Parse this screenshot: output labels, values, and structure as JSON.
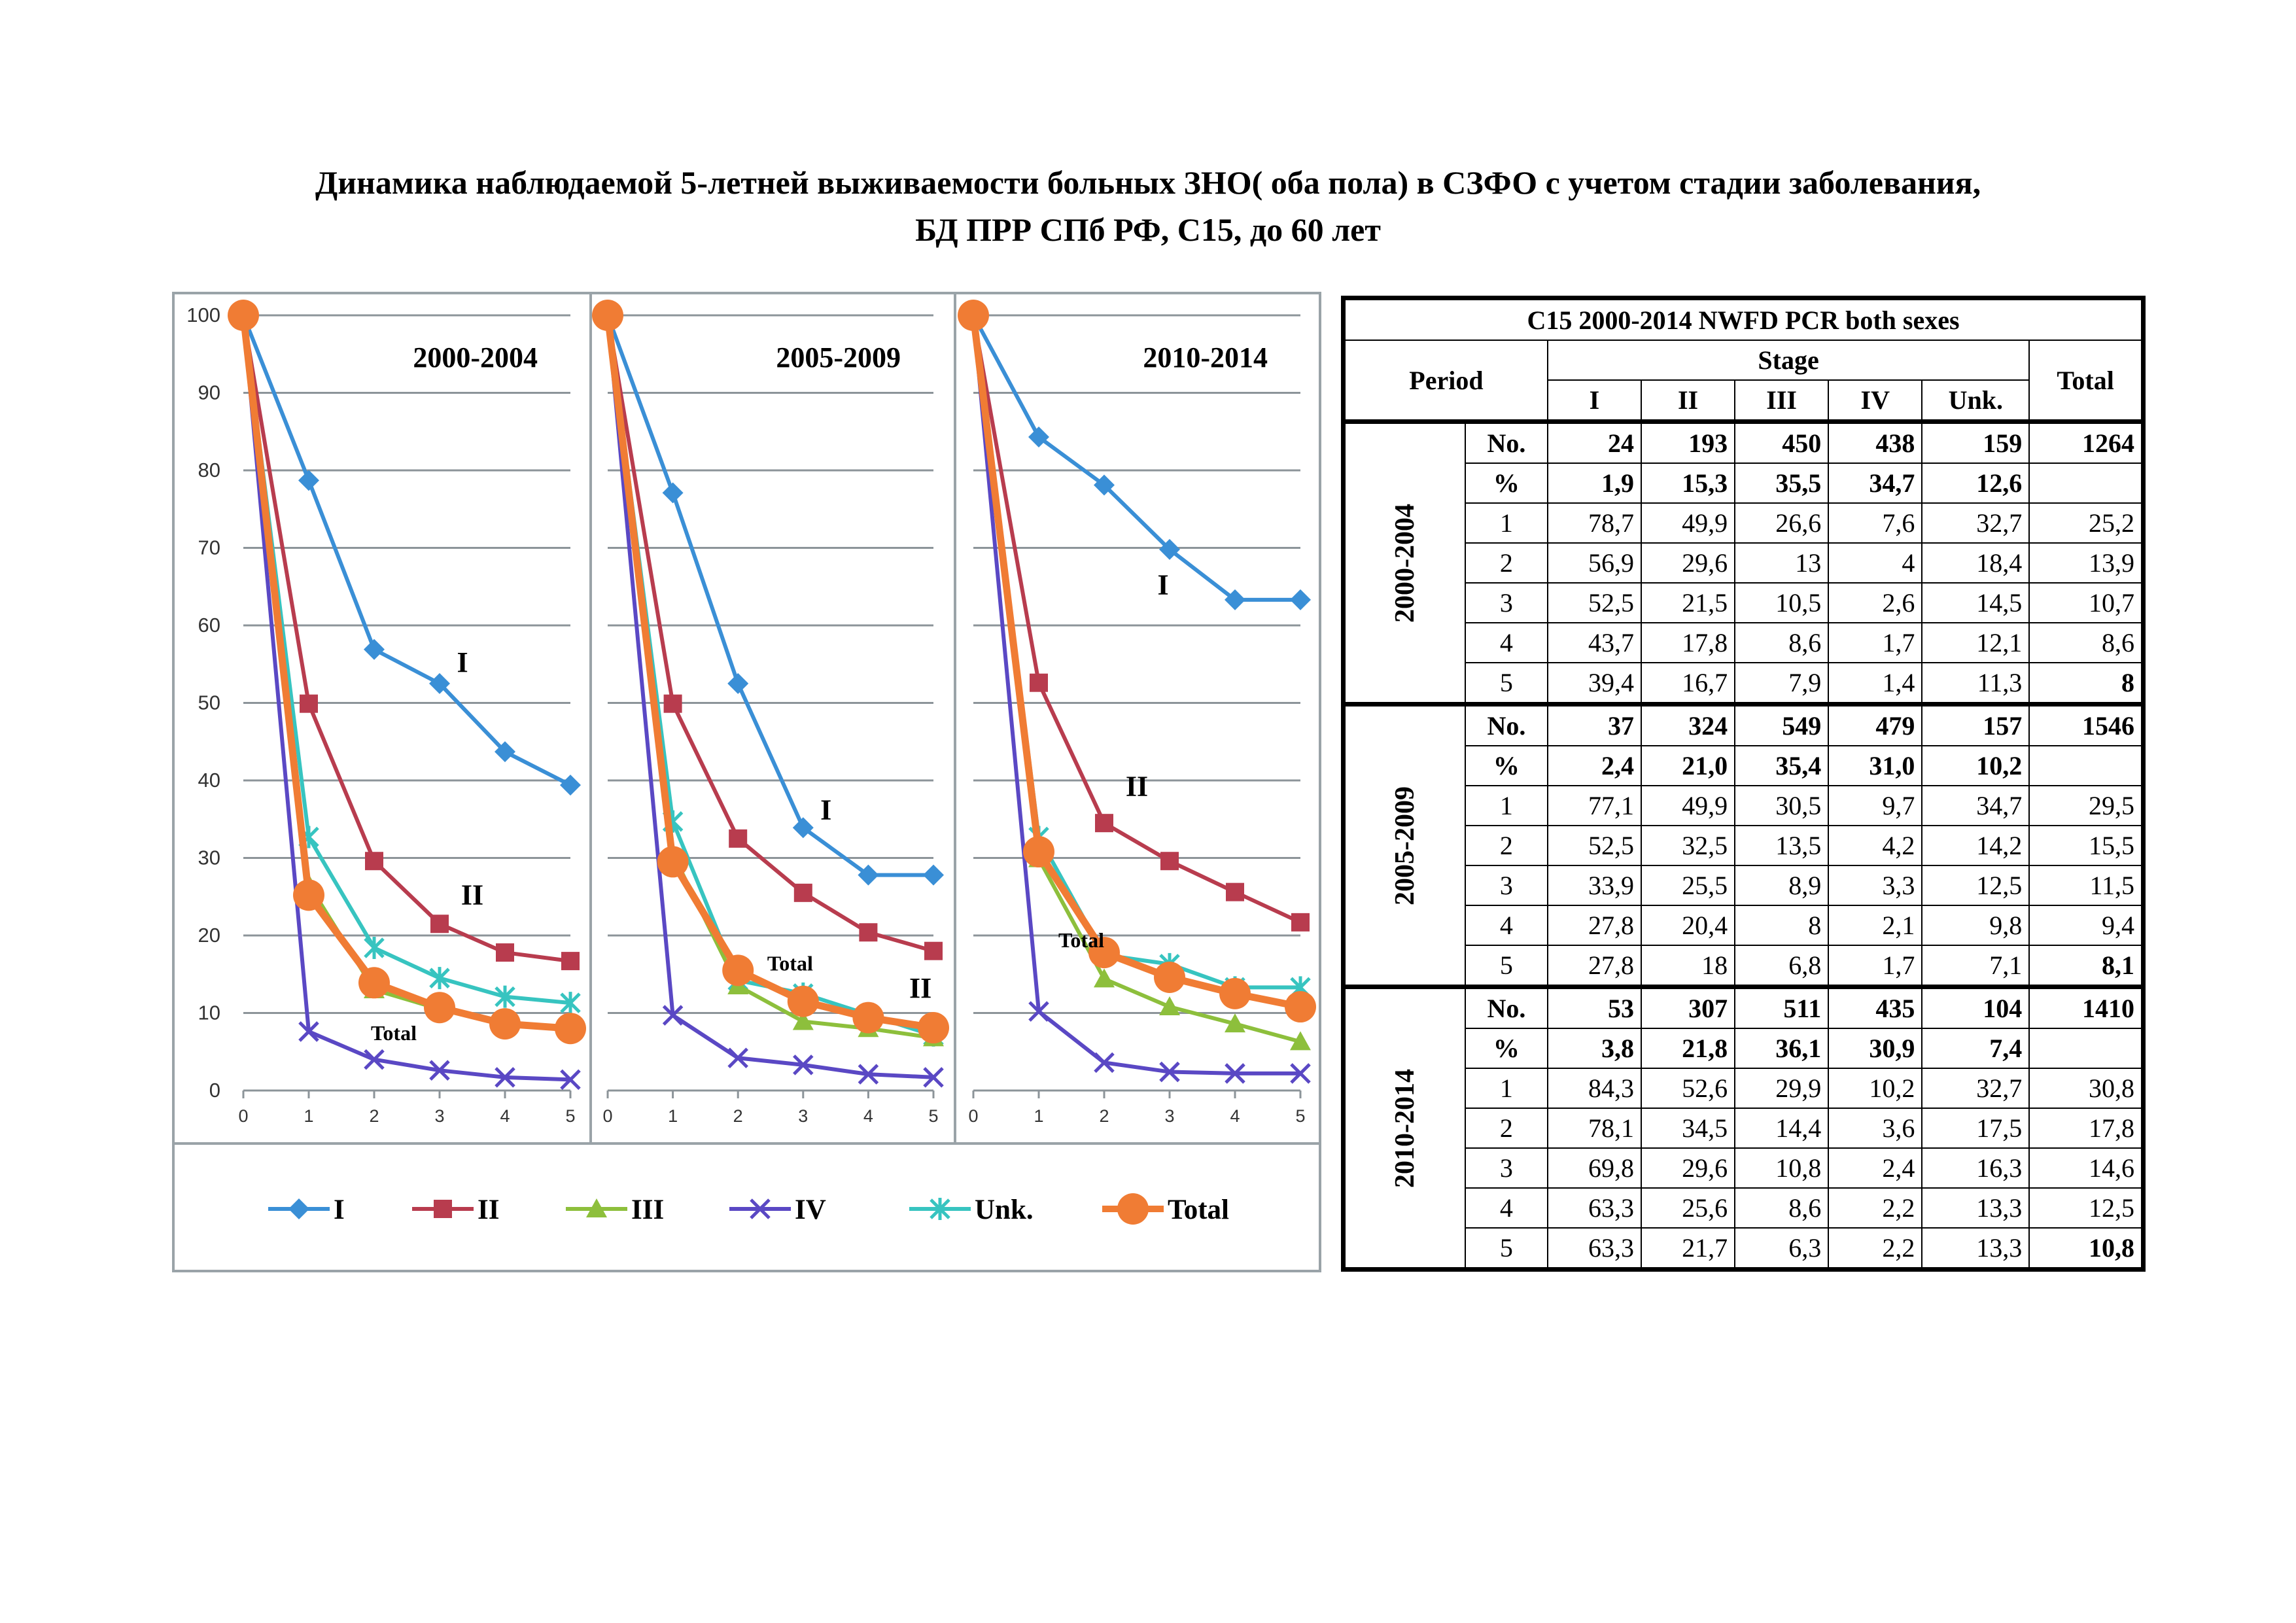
{
  "title_line1": "Динамика  наблюдаемой 5-летней выживаемости больных ЗНО( оба пола) в СЗФО с учетом стадии заболевания,",
  "title_line2": "БД ПРР СПб РФ, C15, до 60 лет",
  "colors": {
    "I": "#3a8fd6",
    "II": "#b83c4e",
    "III": "#8dbf3c",
    "IV": "#5a48c4",
    "Unk": "#37c4c0",
    "Total": "#f07c34"
  },
  "chart_data": [
    {
      "type": "line",
      "period_label": "2000-2004",
      "x": [
        0,
        1,
        2,
        3,
        4,
        5
      ],
      "ylim": [
        0,
        100
      ],
      "yticks": [
        0,
        10,
        20,
        30,
        40,
        50,
        60,
        70,
        80,
        90,
        100
      ],
      "series": [
        {
          "name": "I",
          "values": [
            100,
            78.7,
            56.9,
            52.5,
            43.7,
            39.4
          ]
        },
        {
          "name": "II",
          "values": [
            100,
            49.9,
            29.6,
            21.5,
            17.8,
            16.7
          ]
        },
        {
          "name": "III",
          "values": [
            100,
            26.6,
            13,
            10.5,
            8.6,
            7.9
          ]
        },
        {
          "name": "IV",
          "values": [
            100,
            7.6,
            4,
            2.6,
            1.7,
            1.4
          ]
        },
        {
          "name": "Unk.",
          "values": [
            100,
            32.7,
            18.4,
            14.5,
            12.1,
            11.3
          ]
        },
        {
          "name": "Total",
          "values": [
            100,
            25.2,
            13.9,
            10.7,
            8.6,
            8
          ]
        }
      ],
      "annotations": [
        {
          "text": "I",
          "x": 3.35,
          "y": 54
        },
        {
          "text": "II",
          "x": 3.5,
          "y": 24
        },
        {
          "text": "Total",
          "x": 2.3,
          "y": 6.5
        }
      ]
    },
    {
      "type": "line",
      "period_label": "2005-2009",
      "x": [
        0,
        1,
        2,
        3,
        4,
        5
      ],
      "ylim": [
        0,
        100
      ],
      "series": [
        {
          "name": "I",
          "values": [
            100,
            77.1,
            52.5,
            33.9,
            27.8,
            27.8
          ]
        },
        {
          "name": "II",
          "values": [
            100,
            49.9,
            32.5,
            25.5,
            20.4,
            18
          ]
        },
        {
          "name": "III",
          "values": [
            100,
            30.5,
            13.5,
            8.9,
            8,
            6.8
          ]
        },
        {
          "name": "IV",
          "values": [
            100,
            9.7,
            4.2,
            3.3,
            2.1,
            1.7
          ]
        },
        {
          "name": "Unk.",
          "values": [
            100,
            34.7,
            14.2,
            12.5,
            9.8,
            7.1
          ]
        },
        {
          "name": "Total",
          "values": [
            100,
            29.5,
            15.5,
            11.5,
            9.4,
            8.1
          ]
        }
      ],
      "annotations": [
        {
          "text": "I",
          "x": 3.35,
          "y": 35
        },
        {
          "text": "II",
          "x": 4.8,
          "y": 12
        },
        {
          "text": "Total",
          "x": 2.8,
          "y": 15.5
        }
      ]
    },
    {
      "type": "line",
      "period_label": "2010-2014",
      "x": [
        0,
        1,
        2,
        3,
        4,
        5
      ],
      "ylim": [
        0,
        100
      ],
      "series": [
        {
          "name": "I",
          "values": [
            100,
            84.3,
            78.1,
            69.8,
            63.3,
            63.3
          ]
        },
        {
          "name": "II",
          "values": [
            100,
            52.6,
            34.5,
            29.6,
            25.6,
            21.7
          ]
        },
        {
          "name": "III",
          "values": [
            100,
            29.9,
            14.4,
            10.8,
            8.6,
            6.3
          ]
        },
        {
          "name": "IV",
          "values": [
            100,
            10.2,
            3.6,
            2.4,
            2.2,
            2.2
          ]
        },
        {
          "name": "Unk.",
          "values": [
            100,
            32.7,
            17.5,
            16.3,
            13.3,
            13.3
          ]
        },
        {
          "name": "Total",
          "values": [
            100,
            30.8,
            17.8,
            14.6,
            12.5,
            10.8
          ]
        }
      ],
      "annotations": [
        {
          "text": "I",
          "x": 2.9,
          "y": 64
        },
        {
          "text": "II",
          "x": 2.5,
          "y": 38
        },
        {
          "text": "Total",
          "x": 1.65,
          "y": 18.5
        }
      ]
    }
  ],
  "legend": [
    {
      "name": "I",
      "label": "I"
    },
    {
      "name": "II",
      "label": "II"
    },
    {
      "name": "III",
      "label": "III"
    },
    {
      "name": "IV",
      "label": "IV"
    },
    {
      "name": "Unk.",
      "label": "Unk."
    },
    {
      "name": "Total",
      "label": "Total"
    }
  ],
  "table": {
    "caption": "C15 2000-2014 NWFD PCR both sexes",
    "period_header": "Period",
    "stage_header": "Stage",
    "total_header": "Total",
    "stage_cols": [
      "I",
      "II",
      "III",
      "IV",
      "Unk."
    ],
    "blocks": [
      {
        "period": "2000-2004",
        "rows": [
          {
            "label": "No.",
            "bold": true,
            "values": [
              "24",
              "193",
              "450",
              "438",
              "159"
            ],
            "total": "1264"
          },
          {
            "label": "%",
            "bold": true,
            "values": [
              "1,9",
              "15,3",
              "35,5",
              "34,7",
              "12,6"
            ],
            "total": ""
          },
          {
            "label": "1",
            "values": [
              "78,7",
              "49,9",
              "26,6",
              "7,6",
              "32,7"
            ],
            "total": "25,2"
          },
          {
            "label": "2",
            "values": [
              "56,9",
              "29,6",
              "13",
              "4",
              "18,4"
            ],
            "total": "13,9"
          },
          {
            "label": "3",
            "values": [
              "52,5",
              "21,5",
              "10,5",
              "2,6",
              "14,5"
            ],
            "total": "10,7"
          },
          {
            "label": "4",
            "values": [
              "43,7",
              "17,8",
              "8,6",
              "1,7",
              "12,1"
            ],
            "total": "8,6"
          },
          {
            "label": "5",
            "values": [
              "39,4",
              "16,7",
              "7,9",
              "1,4",
              "11,3"
            ],
            "total": "8",
            "total_bold": true
          }
        ]
      },
      {
        "period": "2005-2009",
        "rows": [
          {
            "label": "No.",
            "bold": true,
            "values": [
              "37",
              "324",
              "549",
              "479",
              "157"
            ],
            "total": "1546"
          },
          {
            "label": "%",
            "bold": true,
            "values": [
              "2,4",
              "21,0",
              "35,4",
              "31,0",
              "10,2"
            ],
            "total": ""
          },
          {
            "label": "1",
            "values": [
              "77,1",
              "49,9",
              "30,5",
              "9,7",
              "34,7"
            ],
            "total": "29,5"
          },
          {
            "label": "2",
            "values": [
              "52,5",
              "32,5",
              "13,5",
              "4,2",
              "14,2"
            ],
            "total": "15,5"
          },
          {
            "label": "3",
            "values": [
              "33,9",
              "25,5",
              "8,9",
              "3,3",
              "12,5"
            ],
            "total": "11,5"
          },
          {
            "label": "4",
            "values": [
              "27,8",
              "20,4",
              "8",
              "2,1",
              "9,8"
            ],
            "total": "9,4"
          },
          {
            "label": "5",
            "values": [
              "27,8",
              "18",
              "6,8",
              "1,7",
              "7,1"
            ],
            "total": "8,1",
            "total_bold": true
          }
        ]
      },
      {
        "period": "2010-2014",
        "rows": [
          {
            "label": "No.",
            "bold": true,
            "values": [
              "53",
              "307",
              "511",
              "435",
              "104"
            ],
            "total": "1410"
          },
          {
            "label": "%",
            "bold": true,
            "values": [
              "3,8",
              "21,8",
              "36,1",
              "30,9",
              "7,4"
            ],
            "total": ""
          },
          {
            "label": "1",
            "values": [
              "84,3",
              "52,6",
              "29,9",
              "10,2",
              "32,7"
            ],
            "total": "30,8"
          },
          {
            "label": "2",
            "values": [
              "78,1",
              "34,5",
              "14,4",
              "3,6",
              "17,5"
            ],
            "total": "17,8"
          },
          {
            "label": "3",
            "values": [
              "69,8",
              "29,6",
              "10,8",
              "2,4",
              "16,3"
            ],
            "total": "14,6"
          },
          {
            "label": "4",
            "values": [
              "63,3",
              "25,6",
              "8,6",
              "2,2",
              "13,3"
            ],
            "total": "12,5"
          },
          {
            "label": "5",
            "values": [
              "63,3",
              "21,7",
              "6,3",
              "2,2",
              "13,3"
            ],
            "total": "10,8",
            "total_bold": true
          }
        ]
      }
    ]
  }
}
